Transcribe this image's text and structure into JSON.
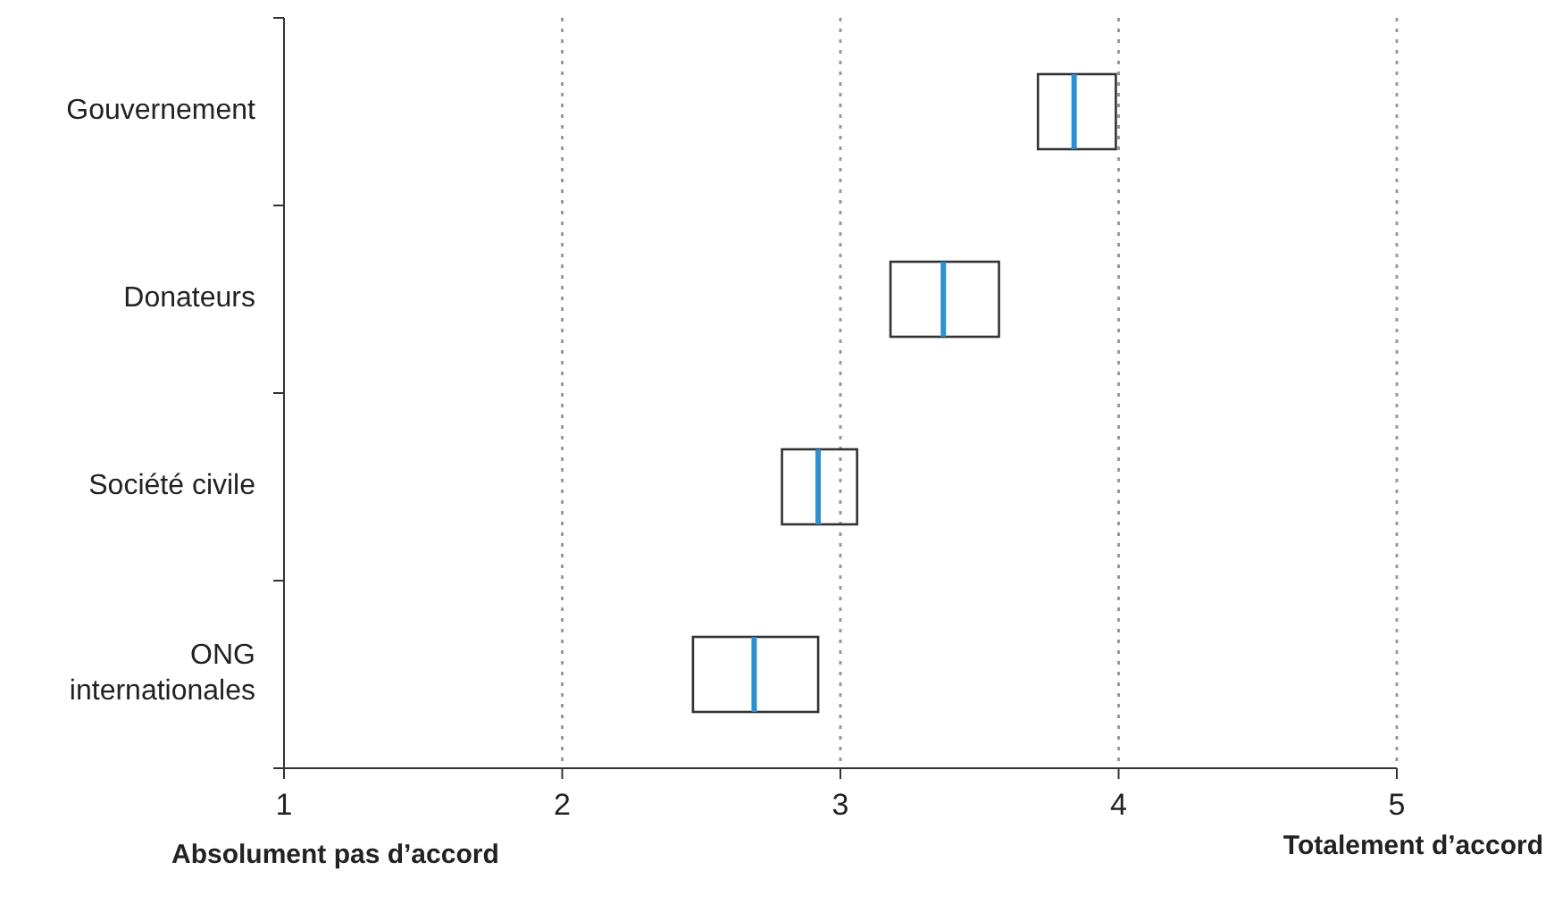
{
  "chart_data": {
    "type": "box",
    "orientation": "horizontal",
    "categories": [
      "Gouvernement",
      "Donateurs",
      "Société civile",
      "ONG internationales"
    ],
    "boxes": [
      {
        "low": 3.71,
        "q1": 3.71,
        "median": 3.84,
        "q3": 3.99,
        "high": 3.99
      },
      {
        "low": 3.18,
        "q1": 3.18,
        "median": 3.37,
        "q3": 3.57,
        "high": 3.57
      },
      {
        "low": 2.79,
        "q1": 2.79,
        "median": 2.92,
        "q3": 3.06,
        "high": 3.06
      },
      {
        "low": 2.47,
        "q1": 2.47,
        "median": 2.69,
        "q3": 2.92,
        "high": 2.92
      }
    ],
    "xlim": [
      1,
      5
    ],
    "xticks": [
      1,
      2,
      3,
      4,
      5
    ],
    "grid": "x",
    "annotations": [
      "Absolument pas d’accord",
      "Totalement d’accord"
    ]
  }
}
